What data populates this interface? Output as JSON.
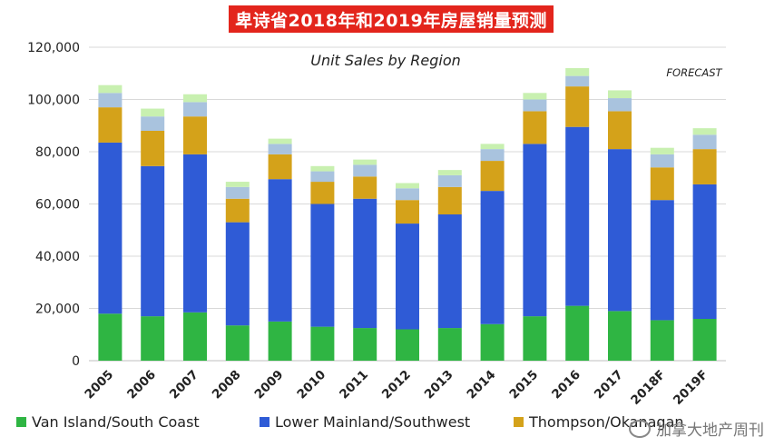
{
  "banner": {
    "title": "卑诗省2018年和2019年房屋销量预测"
  },
  "watermark": {
    "text": "加拿大地产周刊"
  },
  "chart_data": {
    "type": "bar",
    "stacked": true,
    "title": "Unit Sales by Region",
    "annotation": "FORECAST",
    "xlabel": "",
    "ylabel": "",
    "ylim": [
      0,
      120000
    ],
    "yticks": [
      0,
      20000,
      40000,
      60000,
      80000,
      100000,
      120000
    ],
    "ytick_labels": [
      "0",
      "20,000",
      "40,000",
      "60,000",
      "80,000",
      "100,000",
      "120,000"
    ],
    "grid": true,
    "legend_position": "bottom",
    "categories": [
      "2005",
      "2006",
      "2007",
      "2008",
      "2009",
      "2010",
      "2011",
      "2012",
      "2013",
      "2014",
      "2015",
      "2016",
      "2017",
      "2018F",
      "2019F"
    ],
    "series": [
      {
        "name": "Van Island/South Coast",
        "color": "#2fb543",
        "values": [
          18000,
          17000,
          18500,
          13500,
          15000,
          13000,
          12500,
          12000,
          12500,
          14000,
          17000,
          21000,
          19000,
          15500,
          16000
        ]
      },
      {
        "name": "Lower Mainland/Southwest",
        "color": "#2f5bd6",
        "values": [
          65500,
          57500,
          60500,
          39500,
          54500,
          47000,
          49500,
          40500,
          43500,
          51000,
          66000,
          68500,
          62000,
          46000,
          51500
        ]
      },
      {
        "name": "Thompson/Okanagan",
        "color": "#d4a21a",
        "values": [
          13500,
          13500,
          14500,
          9000,
          9500,
          8500,
          8500,
          9000,
          10500,
          11500,
          12500,
          15500,
          14500,
          12500,
          13500
        ]
      },
      {
        "name": "",
        "color": "#a9c3de",
        "values": [
          5500,
          5500,
          5500,
          4500,
          4000,
          4000,
          4500,
          4500,
          4500,
          4500,
          4500,
          4000,
          5000,
          5000,
          5500
        ]
      },
      {
        "name": "",
        "color": "#c8f0b0",
        "values": [
          3000,
          3000,
          3000,
          2000,
          2000,
          2000,
          2000,
          2000,
          2000,
          2000,
          2500,
          3000,
          3000,
          2500,
          2500
        ]
      }
    ]
  }
}
